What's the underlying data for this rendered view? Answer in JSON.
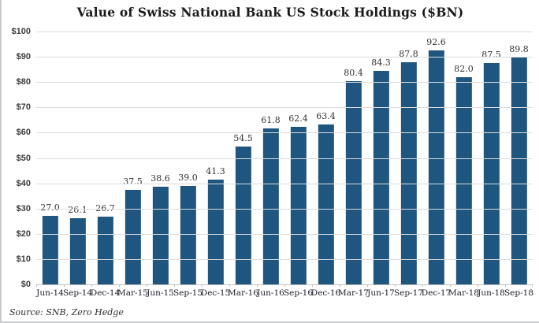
{
  "chart": {
    "title": "Value of Swiss National Bank US Stock Holdings ($BN)",
    "source": "Source: SNB, Zero Hedge"
  },
  "chart_data": {
    "type": "bar",
    "title": "Value of Swiss National Bank US Stock Holdings ($BN)",
    "categories": [
      "Jun-14",
      "Sep-14",
      "Dec-14",
      "Mar-15",
      "Jun-15",
      "Sep-15",
      "Dec-15",
      "Mar-16",
      "Jun-16",
      "Sep-16",
      "Dec-16",
      "Mar-17",
      "Jun-17",
      "Sep-17",
      "Dec-17",
      "Mar-18",
      "Jun-18",
      "Sep-18"
    ],
    "values": [
      27.0,
      26.1,
      26.7,
      37.5,
      38.6,
      39.0,
      41.3,
      54.5,
      61.8,
      62.4,
      63.4,
      80.4,
      84.3,
      87.8,
      92.6,
      82.0,
      87.5,
      89.8
    ],
    "value_labels": [
      "27.0",
      "26.1",
      "26.7",
      "37.5",
      "38.6",
      "39.0",
      "41.3",
      "54.5",
      "61.8",
      "62.4",
      "63.4",
      "80.4",
      "84.3",
      "87.8",
      "92.6",
      "82.0",
      "87.5",
      "89.8"
    ],
    "xlabel": "",
    "ylabel": "",
    "ylim": [
      0,
      100
    ],
    "y_tick_step": 10,
    "y_tick_prefix": "$",
    "y_tick_labels": [
      "$0",
      "$10",
      "$20",
      "$30",
      "$40",
      "$50",
      "$60",
      "$70",
      "$80",
      "$90",
      "$100"
    ],
    "grid": true,
    "legend": false,
    "bar_color": "#1f567f",
    "gridline_color": "#dcdcdc",
    "axis_line_color": "#c0c0c0",
    "source": "Source: SNB, Zero Hedge"
  }
}
